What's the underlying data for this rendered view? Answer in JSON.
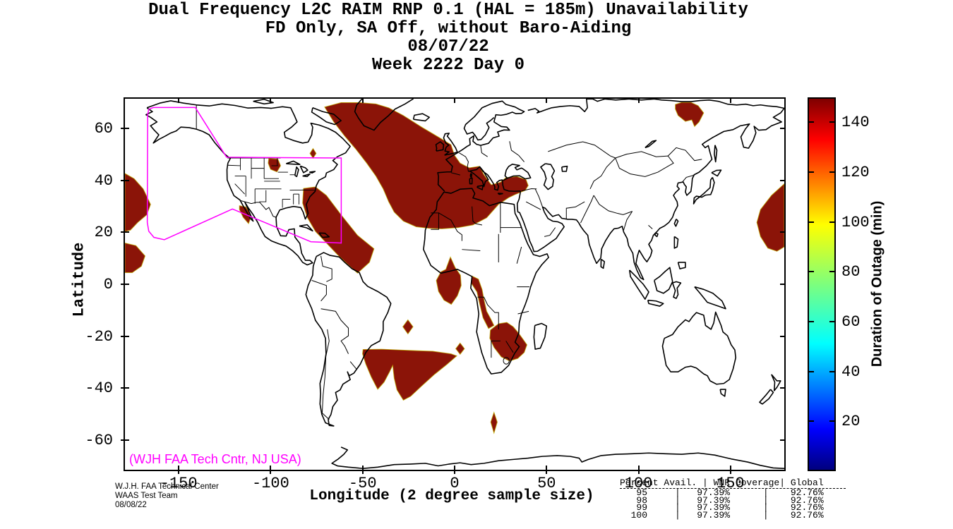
{
  "title": {
    "line1": "Dual Frequency L2C RAIM RNP 0.1 (HAL = 185m) Unavailability",
    "line2": "FD Only, SA Off, without Baro-Aiding",
    "line3": "08/07/22",
    "line4": "Week 2222 Day 0"
  },
  "axes": {
    "xlabel": "Longitude (2 degree sample size)",
    "ylabel": "Latitude",
    "xticks": [
      -150,
      -100,
      -50,
      0,
      50,
      100,
      150
    ],
    "yticks": [
      60,
      40,
      20,
      0,
      -20,
      -40,
      -60
    ],
    "xlim": [
      -180,
      180
    ],
    "ylim": [
      -72,
      72
    ]
  },
  "colorbar": {
    "label": "Duration of Outage (min)",
    "ticks": [
      20,
      40,
      60,
      80,
      100,
      120,
      140
    ],
    "range": [
      0,
      150
    ],
    "colormap": "jet"
  },
  "annotations": {
    "map_credit": "(WJH FAA Tech Cntr, NJ USA)",
    "map_credit_color": "#FF00FF",
    "credit_lines": [
      "W.J.H. FAA Technical Center",
      "WAAS Test Team",
      "08/08/22"
    ]
  },
  "availability_table": {
    "headers": [
      "Percent Avail.",
      "WNR Coverage",
      "Global"
    ],
    "rows": [
      [
        "95",
        "97.39%",
        "92.76%"
      ],
      [
        "98",
        "97.39%",
        "92.76%"
      ],
      [
        "99",
        "97.39%",
        "92.76%"
      ],
      [
        "100",
        "97.39%",
        "92.76%"
      ]
    ]
  },
  "chart_data": {
    "type": "heatmap",
    "subtype": "geographic outage contour map, equirectangular projection",
    "title": "Dual Frequency L2C RAIM RNP 0.1 (HAL = 185m) Unavailability",
    "subtitle": "FD Only, SA Off, without Baro-Aiding",
    "date": "08/07/22",
    "week_day": "Week 2222 Day 0",
    "xlabel": "Longitude (2 degree sample size)",
    "ylabel": "Latitude",
    "xlim": [
      -180,
      180
    ],
    "ylim": [
      -72,
      72
    ],
    "grid": false,
    "colorbar_label": "Duration of Outage (min)",
    "colorbar_range": [
      0,
      150
    ],
    "patch_value_minutes": 150,
    "palette": {
      "outage_fill": "#8B1408",
      "outage_fringe": "#BFAE00",
      "boundary": "#FF00FF"
    },
    "outage_regions": [
      {
        "name": "north-pacific-west-upper",
        "polygon": [
          [
            -180,
            43
          ],
          [
            -175,
            41
          ],
          [
            -170,
            37
          ],
          [
            -166,
            31
          ],
          [
            -168,
            27
          ],
          [
            -173,
            24
          ],
          [
            -177,
            21
          ],
          [
            -180,
            20.5
          ]
        ]
      },
      {
        "name": "north-pacific-west-lower",
        "polygon": [
          [
            -180,
            16
          ],
          [
            -174,
            15
          ],
          [
            -169,
            11
          ],
          [
            -171,
            7
          ],
          [
            -176,
            4.5
          ],
          [
            -180,
            4.5
          ]
        ]
      },
      {
        "name": "baja-california-coast",
        "polygon": [
          [
            -117.5,
            30.5
          ],
          [
            -114,
            30
          ],
          [
            -111,
            26.5
          ],
          [
            -112.5,
            23.5
          ],
          [
            -115.5,
            26
          ],
          [
            -117.5,
            29
          ]
        ]
      },
      {
        "name": "upper-midwest-us",
        "polygon": [
          [
            -101.5,
            48.8
          ],
          [
            -96.5,
            48.6
          ],
          [
            -95,
            46
          ],
          [
            -97,
            43.6
          ],
          [
            -100.5,
            44.6
          ],
          [
            -101.8,
            47
          ]
        ]
      },
      {
        "name": "hudson-bay-south-diamond",
        "polygon": [
          [
            -77.3,
            52.7
          ],
          [
            -75.6,
            50.8
          ],
          [
            -77.3,
            48.9
          ],
          [
            -79,
            50.8
          ]
        ]
      },
      {
        "name": "caribbean-west-atlantic-band",
        "polygon": [
          [
            -82.5,
            37.2
          ],
          [
            -76,
            37.8
          ],
          [
            -70,
            34.5
          ],
          [
            -62,
            27
          ],
          [
            -53,
            19
          ],
          [
            -44,
            13.8
          ],
          [
            -46.5,
            8.5
          ],
          [
            -53,
            4.3
          ],
          [
            -58,
            7.5
          ],
          [
            -64,
            11.5
          ],
          [
            -70,
            16
          ],
          [
            -76,
            20.5
          ],
          [
            -80.5,
            26
          ],
          [
            -83,
            31.5
          ]
        ]
      },
      {
        "name": "north-atlantic-europe-north-africa",
        "polygon": [
          [
            -71,
            68.8
          ],
          [
            -62,
            70.5
          ],
          [
            -52,
            70.5
          ],
          [
            -43,
            70
          ],
          [
            -36,
            68.5
          ],
          [
            -28,
            65.5
          ],
          [
            -18,
            61
          ],
          [
            -9,
            57.2
          ],
          [
            -2,
            54.2
          ],
          [
            0,
            50
          ],
          [
            3,
            47
          ],
          [
            8,
            45.2
          ],
          [
            13.5,
            45.8
          ],
          [
            16,
            42.5
          ],
          [
            20,
            38.6
          ],
          [
            25,
            39.6
          ],
          [
            28,
            41.4
          ],
          [
            34,
            41.8
          ],
          [
            39,
            40.6
          ],
          [
            40.2,
            38.3
          ],
          [
            38.5,
            36.4
          ],
          [
            33,
            34.8
          ],
          [
            29.5,
            33.6
          ],
          [
            24,
            31
          ],
          [
            17.5,
            25.8
          ],
          [
            10,
            23
          ],
          [
            2,
            22
          ],
          [
            -7,
            21.5
          ],
          [
            -14,
            21.7
          ],
          [
            -21,
            22.3
          ],
          [
            -28,
            24.5
          ],
          [
            -33,
            28
          ],
          [
            -36,
            32
          ],
          [
            -39,
            37
          ],
          [
            -43,
            42
          ],
          [
            -48,
            47
          ],
          [
            -54,
            52.5
          ],
          [
            -60,
            57.5
          ],
          [
            -66,
            63
          ]
        ]
      },
      {
        "name": "siberia-northeast",
        "polygon": [
          [
            120.5,
            69.8
          ],
          [
            124,
            70.6
          ],
          [
            129,
            70.6
          ],
          [
            133,
            69.3
          ],
          [
            136,
            66.5
          ],
          [
            133.5,
            63
          ],
          [
            131,
            61.2
          ],
          [
            129.5,
            63.8
          ],
          [
            126,
            63.2
          ],
          [
            122,
            65.5
          ],
          [
            120.5,
            68
          ]
        ]
      },
      {
        "name": "pacific-date-line-east",
        "polygon": [
          [
            180,
            39
          ],
          [
            173,
            34.5
          ],
          [
            167,
            29
          ],
          [
            165,
            24
          ],
          [
            167,
            18.5
          ],
          [
            171,
            14
          ],
          [
            176,
            12.8
          ],
          [
            180,
            14.5
          ]
        ]
      },
      {
        "name": "gulf-of-guinea",
        "polygon": [
          [
            -2.3,
            10.6
          ],
          [
            0.3,
            6.5
          ],
          [
            3.2,
            3.5
          ],
          [
            3.6,
            -0.5
          ],
          [
            1.5,
            -4.5
          ],
          [
            -1.8,
            -7.8
          ],
          [
            -5.8,
            -6.2
          ],
          [
            -8.8,
            -2.8
          ],
          [
            -10,
            1.5
          ],
          [
            -7.5,
            4.8
          ],
          [
            -4.8,
            5.8
          ]
        ]
      },
      {
        "name": "angola-congo-coast",
        "polygon": [
          [
            9.5,
            3.2
          ],
          [
            13,
            2
          ],
          [
            15,
            -2
          ],
          [
            16.2,
            -6.5
          ],
          [
            17.5,
            -10.5
          ],
          [
            19.8,
            -13.5
          ],
          [
            21.5,
            -16
          ],
          [
            18.5,
            -17.2
          ],
          [
            15.5,
            -13
          ],
          [
            13.8,
            -8
          ],
          [
            12.2,
            -3
          ],
          [
            9,
            0.5
          ]
        ]
      },
      {
        "name": "mid-south-atlantic-diamond",
        "polygon": [
          [
            -25.5,
            -13.8
          ],
          [
            -22.7,
            -16.5
          ],
          [
            -25.5,
            -19.3
          ],
          [
            -28.3,
            -16.5
          ]
        ]
      },
      {
        "name": "south-atlantic-small-diamond-east",
        "polygon": [
          [
            3,
            -22.8
          ],
          [
            5.4,
            -25
          ],
          [
            3,
            -27.2
          ],
          [
            0.6,
            -25
          ]
        ]
      },
      {
        "name": "south-atlantic-central",
        "polygon": [
          [
            -50,
            -25.3
          ],
          [
            -40,
            -25.2
          ],
          [
            -30,
            -25.5
          ],
          [
            -20,
            -25.8
          ],
          [
            -12,
            -26
          ],
          [
            -2,
            -27
          ],
          [
            1.2,
            -27.8
          ],
          [
            -4,
            -31
          ],
          [
            -11,
            -35
          ],
          [
            -18,
            -39.5
          ],
          [
            -24,
            -43.5
          ],
          [
            -28,
            -45
          ],
          [
            -31.5,
            -41
          ],
          [
            -33,
            -36.5
          ],
          [
            -33.8,
            -31.5
          ],
          [
            -35.5,
            -34
          ],
          [
            -38.5,
            -38
          ],
          [
            -42,
            -40.8
          ],
          [
            -45.5,
            -36
          ],
          [
            -48.5,
            -31
          ],
          [
            -50.3,
            -27
          ]
        ]
      },
      {
        "name": "southern-africa",
        "polygon": [
          [
            19.5,
            -17.8
          ],
          [
            24,
            -15.3
          ],
          [
            28.5,
            -14.8
          ],
          [
            32,
            -16.5
          ],
          [
            35,
            -19
          ],
          [
            37.5,
            -21.5
          ],
          [
            39.5,
            -23.5
          ],
          [
            38,
            -26.5
          ],
          [
            34.5,
            -28.8
          ],
          [
            30,
            -29.8
          ],
          [
            25.5,
            -28.2
          ],
          [
            21.5,
            -24.5
          ],
          [
            19.2,
            -21
          ]
        ]
      },
      {
        "name": "south-of-africa-diamond",
        "polygon": [
          [
            21.5,
            -49.7
          ],
          [
            23.3,
            -53.5
          ],
          [
            21.5,
            -57.8
          ],
          [
            19.7,
            -53.5
          ]
        ]
      }
    ],
    "waas_service_boundary": {
      "color": "#FF00FF",
      "polygon": [
        [
          -167.8,
          24
        ],
        [
          -167.6,
          65.8
        ],
        [
          -167,
          67.9
        ],
        [
          -164.5,
          68.6
        ],
        [
          -141.6,
          68.6
        ],
        [
          -124.5,
          49.3
        ],
        [
          -61.9,
          49
        ],
        [
          -61.9,
          16
        ],
        [
          -78.5,
          16.5
        ],
        [
          -121.3,
          29.2
        ],
        [
          -158.5,
          17.3
        ],
        [
          -164.2,
          18.2
        ],
        [
          -167,
          20.6
        ]
      ]
    }
  }
}
